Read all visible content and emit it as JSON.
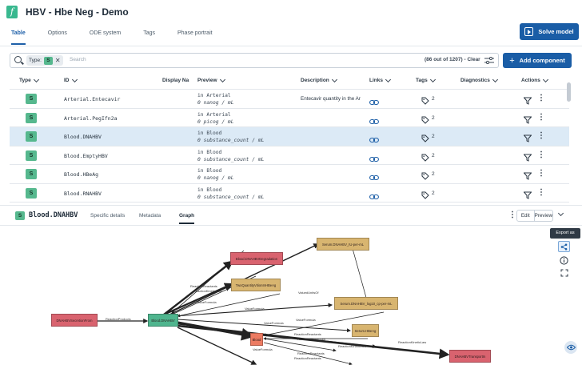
{
  "header": {
    "logo": "f",
    "title": "HBV - Hbe Neg - Demo",
    "tabs": [
      {
        "label": "Table",
        "active": true
      },
      {
        "label": "Options",
        "active": false
      },
      {
        "label": "ODE system",
        "active": false
      },
      {
        "label": "Tags",
        "active": false
      },
      {
        "label": "Phase portrait",
        "active": false
      }
    ],
    "solve_label": "Solve model"
  },
  "toolbar": {
    "filter_chip_label": "Type:",
    "filter_chip_value": "S",
    "search_placeholder": "Search",
    "count_text": "(86 out of 1207) - Clear",
    "add_label": "Add component"
  },
  "table": {
    "columns": [
      "Type",
      "ID",
      "Display Na",
      "Preview",
      "Description",
      "Links",
      "Tags",
      "Diagnostics",
      "Actions"
    ],
    "rows": [
      {
        "type": "S",
        "id": "Arterial.Entecavir",
        "preview_1": "in Arterial",
        "preview_2": "0 nanog / mL",
        "description": "Entecavir quantity in the Ar",
        "tags": "2",
        "selected": false
      },
      {
        "type": "S",
        "id": "Arterial.PegIfn2a",
        "preview_1": "in Arterial",
        "preview_2": "0 picog / mL",
        "description": "",
        "tags": "2",
        "selected": false
      },
      {
        "type": "S",
        "id": "Blood.DNAHBV",
        "preview_1": "in Blood",
        "preview_2": "0 substance_count / mL",
        "description": "",
        "tags": "2",
        "selected": true
      },
      {
        "type": "S",
        "id": "Blood.EmptyHBV",
        "preview_1": "in Blood",
        "preview_2": "0 substance_count / mL",
        "description": "",
        "tags": "2",
        "selected": false
      },
      {
        "type": "S",
        "id": "Blood.HBeAg",
        "preview_1": "in Blood",
        "preview_2": "0 nanog / mL",
        "description": "",
        "tags": "2",
        "selected": false
      },
      {
        "type": "S",
        "id": "Blood.RNAHBV",
        "preview_1": "in Blood",
        "preview_2": "0 substance_count / mL",
        "description": "",
        "tags": "2",
        "selected": false
      }
    ]
  },
  "panel": {
    "badge": "S",
    "title": "Blood.DNAHBV",
    "tabs": [
      {
        "label": "Specific details",
        "active": false
      },
      {
        "label": "Metadata",
        "active": false
      },
      {
        "label": "Graph",
        "active": true
      }
    ],
    "edit_label": "Edit",
    "preview_label": "Preview",
    "export_tooltip": "Export as"
  },
  "graph": {
    "nodes": {
      "dna_secretion": "DNAHBVSecretionFrom",
      "blood_dnahbv": "Blood.DNAHBV",
      "degradation": "Blood.DNAHBVDegradation",
      "two_quantity": "TwoQuantityVitionInHBeAg",
      "serum_per_ml": "Serum.DNAHBV_IU-per-mL",
      "serum_log10": "Serum.DNAHBV_log10_cp-per-mL",
      "serum_hbeag": "Serum.HBeAg",
      "blood": "Blood",
      "transport": "DNAHBVTransportIn"
    },
    "edge_labels": {
      "reaction_products": "ReactionProducts",
      "reaction_reactants": "ReactionReactants",
      "reaction_kinetic_law": "ReactionKineticLaw",
      "value_formula_1": "ValueFormula",
      "value_formula_2": "ValueFormula",
      "value_formula_3": "ValueFormula",
      "value_formula_4": "ValueFormula",
      "valued_unitsof": "ValuedUnitsOf",
      "value_formula_5": "ValueFormula",
      "reaction_reactants_2": "ReactionReactants",
      "reaction_kinetic_law_2": "ReactionKineticLaw",
      "reaction_kinetic_law_3": "ReactionKineticLaw",
      "reaction_reactants_3": "ReactionReactants",
      "reaction_reactants_4": "ReactionReactants",
      "reaction_kinetic_law_4": "ReactionKineticLaw"
    }
  },
  "colors": {
    "accent": "#1a5da6",
    "species": "#56b88e",
    "reaction": "#d9636f",
    "parameter": "#d8b570",
    "compartment": "#ec7b62",
    "selected_row": "#dceaf6"
  }
}
